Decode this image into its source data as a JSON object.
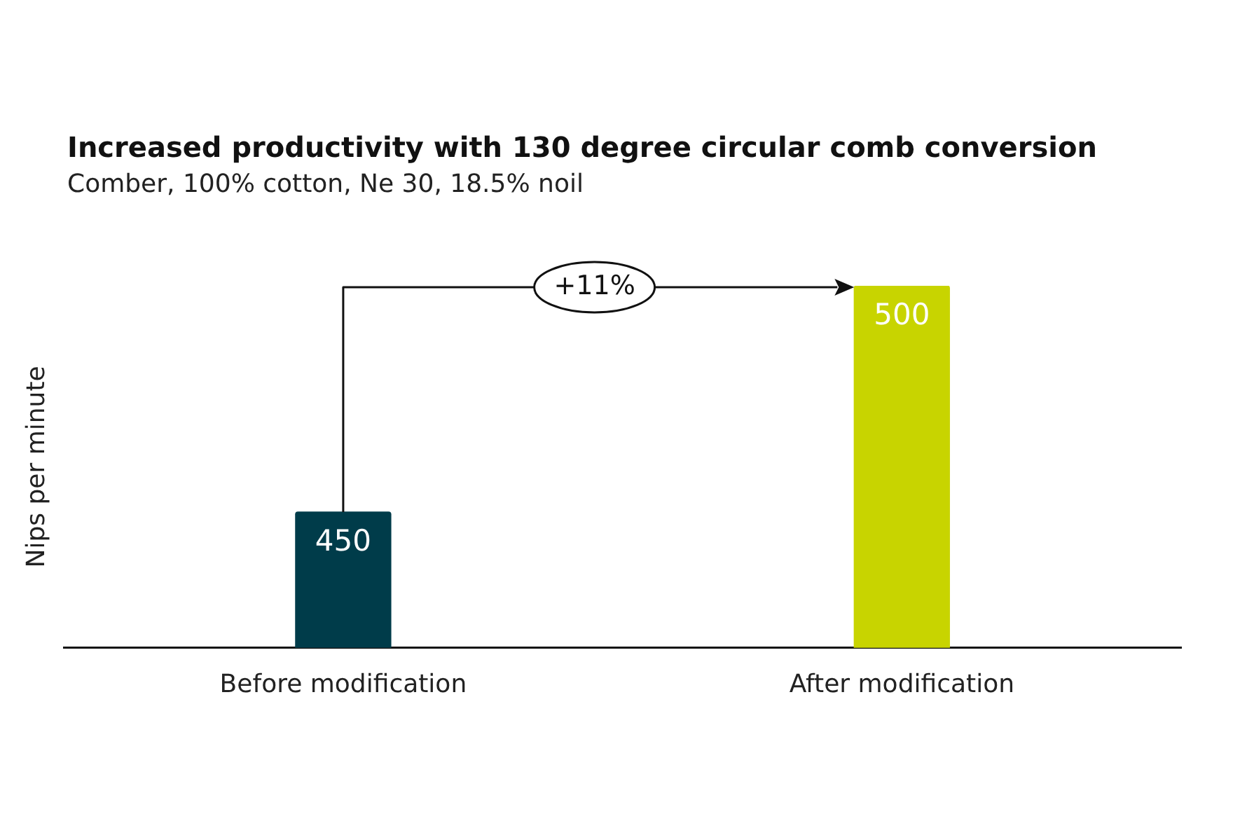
{
  "chart_data": {
    "type": "bar",
    "title": "Increased productivity with 130 degree circular comb conversion",
    "subtitle": "Comber, 100% cotton, Ne 30, 18.5% noil",
    "ylabel": "Nips per minute",
    "categories": [
      "Before modification",
      "After modification"
    ],
    "values": [
      450,
      500
    ],
    "colors": [
      "#003c4a",
      "#c8d400"
    ],
    "ylim": [
      420,
      500
    ],
    "tick_labels": "x",
    "data_labels": true,
    "annotations": [
      "+11%"
    ]
  }
}
